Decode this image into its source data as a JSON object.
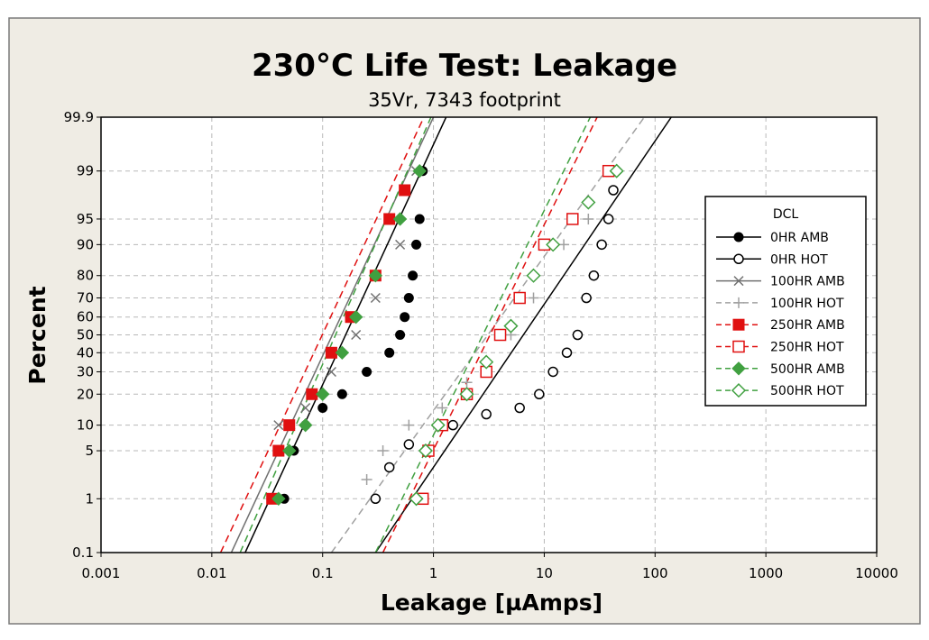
{
  "chart_data": {
    "type": "scatter",
    "title": "230°C Life Test: Leakage",
    "subtitle": "35Vr, 7343 footprint",
    "xlabel": "Leakage [µAmps]",
    "ylabel": "Percent",
    "xscale": "log",
    "yscale": "normal-probability",
    "xlim": [
      0.001,
      10000
    ],
    "ylim": [
      0.1,
      99.9
    ],
    "x_ticks": [
      "0.001",
      "0.01",
      "0.1",
      "1",
      "10",
      "100",
      "1000",
      "10000"
    ],
    "y_ticks": [
      "0.1",
      "1",
      "5",
      "10",
      "20",
      "30",
      "40",
      "50",
      "60",
      "70",
      "80",
      "90",
      "95",
      "99",
      "99.9"
    ],
    "grid": true,
    "legend_title": "DCL",
    "legend_position": "right",
    "series": [
      {
        "name": "0HR AMB",
        "color": "#000000",
        "marker": "filled-circle",
        "line": "solid",
        "points": [
          [
            0.045,
            1
          ],
          [
            0.055,
            5
          ],
          [
            0.07,
            10
          ],
          [
            0.1,
            15
          ],
          [
            0.15,
            20
          ],
          [
            0.25,
            30
          ],
          [
            0.4,
            40
          ],
          [
            0.5,
            50
          ],
          [
            0.55,
            60
          ],
          [
            0.6,
            70
          ],
          [
            0.65,
            80
          ],
          [
            0.7,
            90
          ],
          [
            0.75,
            95
          ],
          [
            0.8,
            99
          ]
        ],
        "fit": [
          [
            0.02,
            0.1
          ],
          [
            1.3,
            99.9
          ]
        ]
      },
      {
        "name": "0HR HOT",
        "color": "#000000",
        "marker": "open-circle",
        "line": "solid",
        "points": [
          [
            0.3,
            1
          ],
          [
            0.4,
            3
          ],
          [
            0.6,
            6
          ],
          [
            1.5,
            10
          ],
          [
            3,
            13
          ],
          [
            6,
            15
          ],
          [
            9,
            20
          ],
          [
            12,
            30
          ],
          [
            16,
            40
          ],
          [
            20,
            50
          ],
          [
            24,
            70
          ],
          [
            28,
            80
          ],
          [
            33,
            90
          ],
          [
            38,
            95
          ],
          [
            42,
            98
          ]
        ],
        "fit": [
          [
            0.3,
            0.1
          ],
          [
            140,
            99.9
          ]
        ]
      },
      {
        "name": "100HR AMB",
        "color": "#707070",
        "marker": "x",
        "line": "solid",
        "points": [
          [
            0.04,
            10
          ],
          [
            0.07,
            15
          ],
          [
            0.12,
            30
          ],
          [
            0.2,
            50
          ],
          [
            0.3,
            70
          ],
          [
            0.5,
            90
          ],
          [
            0.7,
            99
          ]
        ],
        "fit": [
          [
            0.015,
            0.1
          ],
          [
            1,
            99.9
          ]
        ]
      },
      {
        "name": "100HR HOT",
        "color": "#a0a0a0",
        "marker": "plus",
        "line": "dashed",
        "points": [
          [
            0.25,
            2
          ],
          [
            0.35,
            5
          ],
          [
            0.6,
            10
          ],
          [
            1.2,
            15
          ],
          [
            2,
            25
          ],
          [
            3,
            35
          ],
          [
            5,
            50
          ],
          [
            8,
            70
          ],
          [
            15,
            90
          ],
          [
            25,
            95
          ],
          [
            40,
            99
          ]
        ],
        "fit": [
          [
            0.12,
            0.1
          ],
          [
            80,
            99.9
          ]
        ]
      },
      {
        "name": "250HR AMB",
        "color": "#e01010",
        "marker": "filled-square",
        "line": "dashed",
        "points": [
          [
            0.035,
            1
          ],
          [
            0.04,
            5
          ],
          [
            0.05,
            10
          ],
          [
            0.08,
            20
          ],
          [
            0.12,
            40
          ],
          [
            0.18,
            60
          ],
          [
            0.3,
            80
          ],
          [
            0.4,
            95
          ],
          [
            0.55,
            98
          ]
        ],
        "fit": [
          [
            0.012,
            0.1
          ],
          [
            0.82,
            99.9
          ]
        ]
      },
      {
        "name": "250HR HOT",
        "color": "#e01010",
        "marker": "open-square",
        "line": "dashed",
        "points": [
          [
            0.8,
            1
          ],
          [
            0.9,
            5
          ],
          [
            1.2,
            10
          ],
          [
            2,
            20
          ],
          [
            3,
            30
          ],
          [
            4,
            50
          ],
          [
            6,
            70
          ],
          [
            10,
            90
          ],
          [
            18,
            95
          ],
          [
            38,
            99
          ]
        ],
        "fit": [
          [
            0.35,
            0.1
          ],
          [
            30,
            99.9
          ]
        ]
      },
      {
        "name": "500HR AMB",
        "color": "#40a040",
        "marker": "filled-diamond",
        "line": "dashed",
        "points": [
          [
            0.04,
            1
          ],
          [
            0.05,
            5
          ],
          [
            0.07,
            10
          ],
          [
            0.1,
            20
          ],
          [
            0.15,
            40
          ],
          [
            0.2,
            60
          ],
          [
            0.3,
            80
          ],
          [
            0.5,
            95
          ],
          [
            0.75,
            99
          ]
        ],
        "fit": [
          [
            0.018,
            0.1
          ],
          [
            0.95,
            99.9
          ]
        ]
      },
      {
        "name": "500HR HOT",
        "color": "#40a040",
        "marker": "open-diamond",
        "line": "dashed",
        "points": [
          [
            0.7,
            1
          ],
          [
            0.85,
            5
          ],
          [
            1.1,
            10
          ],
          [
            2,
            20
          ],
          [
            3,
            35
          ],
          [
            5,
            55
          ],
          [
            8,
            80
          ],
          [
            12,
            90
          ],
          [
            25,
            97
          ],
          [
            45,
            99
          ]
        ],
        "fit": [
          [
            0.3,
            0.1
          ],
          [
            26,
            99.9
          ]
        ]
      }
    ]
  }
}
